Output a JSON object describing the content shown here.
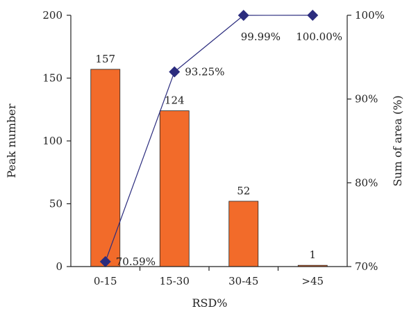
{
  "chart_data": {
    "type": "bar",
    "xlabel": "RSD%",
    "categories": [
      "0-15",
      "15-30",
      "30-45",
      ">45"
    ],
    "bar_series": {
      "axis": "left",
      "ylabel": "Peak number",
      "ylim": [
        0,
        200
      ],
      "yticks": [
        "0",
        "50",
        "100",
        "150",
        "200"
      ],
      "values": [
        157,
        124,
        52,
        1
      ],
      "labels": [
        "157",
        "124",
        "52",
        "1"
      ],
      "color": "#f26b2a"
    },
    "line_series": {
      "axis": "right",
      "type": "line",
      "ylabel": "Sum of area (%)",
      "ylim": [
        70,
        100
      ],
      "yticks": [
        "70%",
        "80%",
        "90%",
        "100%"
      ],
      "values": [
        70.59,
        93.25,
        99.99,
        100.0
      ],
      "labels": [
        "70.59%",
        "93.25%",
        "99.99%",
        "100.00%"
      ],
      "color": "#2b2c7e",
      "marker": "diamond"
    },
    "grid": false,
    "legend": "none"
  }
}
